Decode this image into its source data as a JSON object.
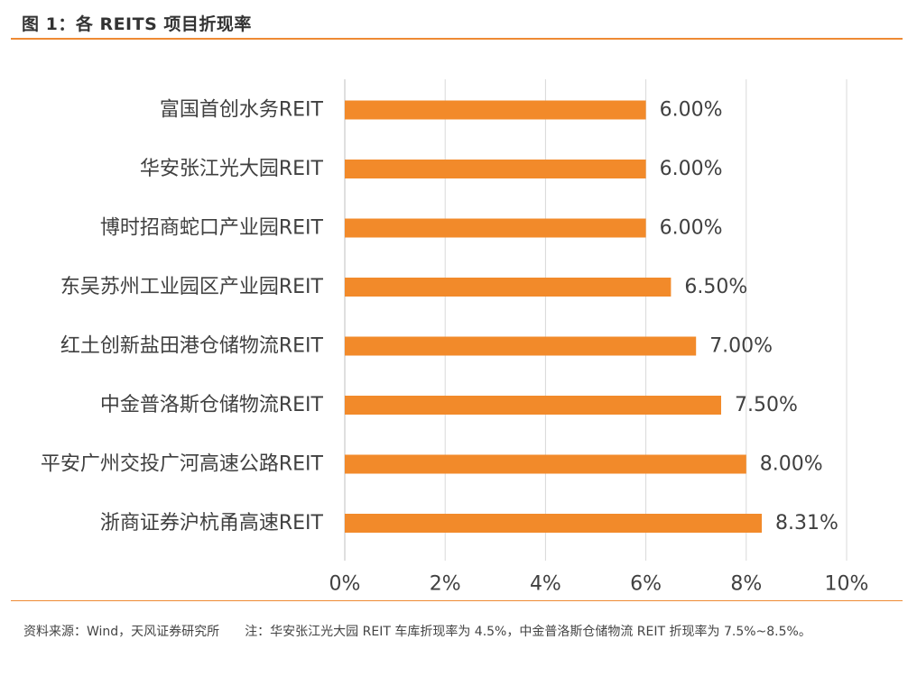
{
  "figure": {
    "title": "图 1：各 REITS 项目折现率",
    "source": "资料来源：Wind，天风证券研究所",
    "note": "注：华安张江光大园 REIT 车库折现率为 4.5%，中金普洛斯仓储物流 REIT 折现率为 7.5%~8.5%。"
  },
  "colors": {
    "bar": "#f28a2a",
    "accent_rule": "#ee8a34",
    "grid": "#d9d9d9",
    "text": "#404040"
  },
  "chart_data": {
    "type": "bar",
    "orientation": "horizontal",
    "categories": [
      "富国首创水务REIT",
      "华安张江光大园REIT",
      "博时招商蛇口产业园REIT",
      "东吴苏州工业园区产业园REIT",
      "红土创新盐田港仓储物流REIT",
      "中金普洛斯仓储物流REIT",
      "平安广州交投广河高速公路REIT",
      "浙商证券沪杭甬高速REIT"
    ],
    "values": [
      6.0,
      6.0,
      6.0,
      6.5,
      7.0,
      7.5,
      8.0,
      8.31
    ],
    "value_labels": [
      "6.00%",
      "6.00%",
      "6.00%",
      "6.50%",
      "7.00%",
      "7.50%",
      "8.00%",
      "8.31%"
    ],
    "xlim": [
      0,
      10
    ],
    "x_ticks": [
      0,
      2,
      4,
      6,
      8,
      10
    ],
    "x_tick_labels": [
      "0%",
      "2%",
      "4%",
      "6%",
      "8%",
      "10%"
    ],
    "grid": "vertical",
    "legend": "none"
  }
}
